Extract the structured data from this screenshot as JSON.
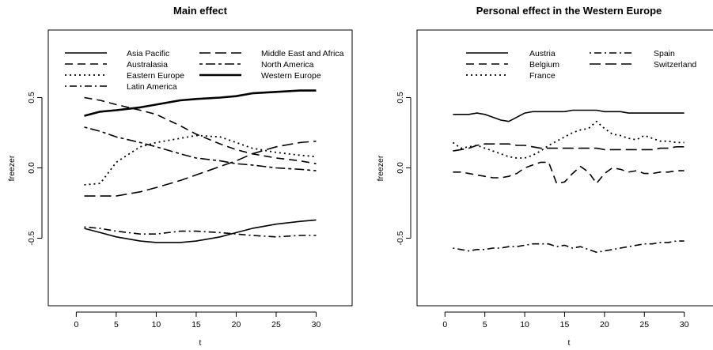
{
  "chart_data": [
    {
      "type": "line",
      "title": "Main effect",
      "xlabel": "t",
      "ylabel": "freezer",
      "xlim": [
        -3.5,
        34.5
      ],
      "ylim": [
        -0.98,
        0.98
      ],
      "xticks": [
        0,
        5,
        10,
        15,
        20,
        25,
        30
      ],
      "yticks": [
        -0.5,
        0.0,
        0.5
      ],
      "ytick_labels": [
        "-0.5",
        "0.0",
        "0.5"
      ],
      "grid": false,
      "legend_position": "top",
      "legend_columns": 3,
      "x": [
        1,
        3,
        5,
        8,
        10,
        13,
        15,
        18,
        20,
        22,
        25,
        28,
        30
      ],
      "series": [
        {
          "name": "Asia Pacific",
          "style": "solid",
          "width": 1.6,
          "values": [
            -0.43,
            -0.46,
            -0.49,
            -0.52,
            -0.53,
            -0.53,
            -0.52,
            -0.49,
            -0.46,
            -0.43,
            -0.4,
            -0.38,
            -0.37
          ]
        },
        {
          "name": "Australasia",
          "style": "dashed",
          "width": 1.6,
          "values": [
            0.5,
            0.48,
            0.45,
            0.41,
            0.38,
            0.3,
            0.24,
            0.17,
            0.13,
            0.1,
            0.07,
            0.05,
            0.03
          ]
        },
        {
          "name": "Eastern Europe",
          "style": "dotted",
          "width": 1.8,
          "values": [
            -0.12,
            -0.11,
            0.04,
            0.15,
            0.18,
            0.21,
            0.23,
            0.22,
            0.18,
            0.14,
            0.11,
            0.09,
            0.08
          ]
        },
        {
          "name": "Latin America",
          "style": "dotdash",
          "width": 1.6,
          "values": [
            -0.42,
            -0.43,
            -0.45,
            -0.47,
            -0.47,
            -0.45,
            -0.45,
            -0.46,
            -0.47,
            -0.48,
            -0.49,
            -0.48,
            -0.48
          ]
        },
        {
          "name": "Middle East and Africa",
          "style": "longdash",
          "width": 1.6,
          "values": [
            -0.2,
            -0.2,
            -0.2,
            -0.17,
            -0.14,
            -0.09,
            -0.05,
            0.01,
            0.05,
            0.1,
            0.15,
            0.18,
            0.19
          ]
        },
        {
          "name": "North America",
          "style": "twodash",
          "width": 1.6,
          "values": [
            0.29,
            0.26,
            0.22,
            0.18,
            0.15,
            0.1,
            0.07,
            0.05,
            0.03,
            0.02,
            0.0,
            -0.01,
            -0.02
          ]
        },
        {
          "name": "Western Europe",
          "style": "solid",
          "width": 2.6,
          "values": [
            0.37,
            0.4,
            0.41,
            0.43,
            0.45,
            0.48,
            0.49,
            0.5,
            0.51,
            0.53,
            0.54,
            0.55,
            0.55
          ]
        }
      ]
    },
    {
      "type": "line",
      "title": "Personal effect in the Western Europe",
      "xlabel": "t",
      "ylabel": "freezer",
      "xlim": [
        -3.5,
        34.5
      ],
      "ylim": [
        -0.98,
        0.98
      ],
      "xticks": [
        0,
        5,
        10,
        15,
        20,
        25,
        30
      ],
      "yticks": [
        -0.5,
        0.0,
        0.5
      ],
      "ytick_labels": [
        "-0.5",
        "0.0",
        "0.5"
      ],
      "grid": false,
      "legend_position": "top",
      "legend_columns": 2,
      "x": [
        1,
        2,
        3,
        4,
        5,
        6,
        7,
        8,
        9,
        10,
        11,
        12,
        13,
        14,
        15,
        16,
        17,
        18,
        19,
        20,
        21,
        22,
        23,
        24,
        25,
        26,
        27,
        28,
        29,
        30
      ],
      "series": [
        {
          "name": "Austria",
          "style": "solid",
          "width": 1.6,
          "values": [
            0.38,
            0.38,
            0.38,
            0.39,
            0.38,
            0.36,
            0.34,
            0.33,
            0.36,
            0.39,
            0.4,
            0.4,
            0.4,
            0.4,
            0.4,
            0.41,
            0.41,
            0.41,
            0.41,
            0.4,
            0.4,
            0.4,
            0.39,
            0.39,
            0.39,
            0.39,
            0.39,
            0.39,
            0.39,
            0.39
          ]
        },
        {
          "name": "Belgium",
          "style": "dashed",
          "width": 1.6,
          "values": [
            -0.03,
            -0.03,
            -0.04,
            -0.05,
            -0.06,
            -0.07,
            -0.07,
            -0.06,
            -0.04,
            0.0,
            0.02,
            0.04,
            0.04,
            -0.11,
            -0.1,
            -0.04,
            0.01,
            -0.03,
            -0.11,
            -0.04,
            0.0,
            -0.01,
            -0.03,
            -0.02,
            -0.04,
            -0.04,
            -0.03,
            -0.03,
            -0.02,
            -0.02
          ]
        },
        {
          "name": "France",
          "style": "dotted",
          "width": 1.8,
          "values": [
            0.18,
            0.14,
            0.15,
            0.16,
            0.14,
            0.12,
            0.1,
            0.08,
            0.07,
            0.07,
            0.09,
            0.12,
            0.16,
            0.19,
            0.22,
            0.25,
            0.27,
            0.28,
            0.33,
            0.28,
            0.24,
            0.23,
            0.21,
            0.2,
            0.23,
            0.21,
            0.19,
            0.19,
            0.18,
            0.18
          ]
        },
        {
          "name": "Spain",
          "style": "dotdash",
          "width": 1.6,
          "values": [
            -0.57,
            -0.58,
            -0.59,
            -0.58,
            -0.58,
            -0.57,
            -0.57,
            -0.56,
            -0.56,
            -0.55,
            -0.54,
            -0.54,
            -0.54,
            -0.56,
            -0.55,
            -0.57,
            -0.56,
            -0.58,
            -0.6,
            -0.59,
            -0.58,
            -0.57,
            -0.56,
            -0.55,
            -0.54,
            -0.54,
            -0.53,
            -0.53,
            -0.52,
            -0.52
          ]
        },
        {
          "name": "Switzerland",
          "style": "longdash",
          "width": 1.6,
          "values": [
            0.12,
            0.13,
            0.14,
            0.16,
            0.17,
            0.17,
            0.17,
            0.17,
            0.16,
            0.16,
            0.15,
            0.14,
            0.14,
            0.14,
            0.14,
            0.14,
            0.14,
            0.14,
            0.14,
            0.13,
            0.13,
            0.13,
            0.13,
            0.13,
            0.13,
            0.13,
            0.14,
            0.14,
            0.15,
            0.15
          ]
        }
      ]
    }
  ]
}
